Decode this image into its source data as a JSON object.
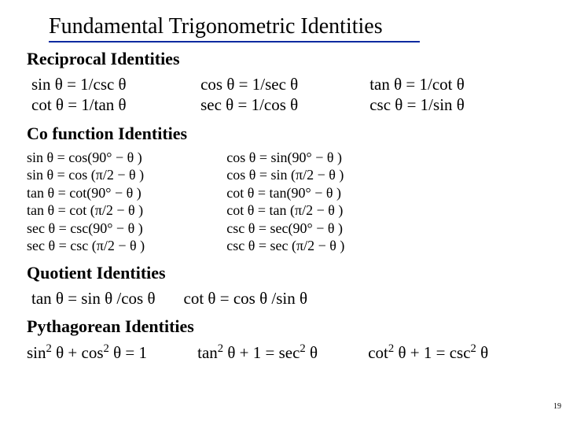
{
  "title": "Fundamental Trigonometric Identities",
  "underline_color": "#0a2aa0",
  "sections": {
    "reciprocal": "Reciprocal Identities",
    "cofunction": "Co function Identities",
    "quotient": "Quotient Identities",
    "pythagorean": "Pythagorean Identities"
  },
  "reciprocal_rows": {
    "c1r1": "sin θ = 1/csc θ",
    "c1r2": "cot θ = 1/tan θ",
    "c2r1": "cos θ = 1/sec θ",
    "c2r2": "sec θ = 1/cos θ",
    "c3r1": "tan θ = 1/cot θ",
    "c3r2": "csc θ = 1/sin θ"
  },
  "cofunction_rows": {
    "cA": [
      "sin θ = cos(90° − θ )",
      "sin θ = cos (π/2 − θ )",
      "tan θ = cot(90° − θ )",
      "tan θ = cot (π/2 − θ )",
      "sec θ = csc(90° − θ )",
      "sec θ = csc (π/2 − θ )"
    ],
    "cB": [
      "cos θ = sin(90° − θ )",
      "cos θ = sin (π/2 − θ )",
      "cot θ = tan(90° − θ )",
      "cot θ = tan (π/2 − θ )",
      "csc θ = sec(90° − θ )",
      "csc θ = sec (π/2 − θ )"
    ]
  },
  "quotient": {
    "q1": "tan θ = sin θ /cos θ",
    "q2": "cot θ  = cos θ /sin θ"
  },
  "pythag": {
    "p1_pre": "sin",
    "p1_mid": " θ + cos",
    "p1_post": " θ = 1",
    "p2_pre": "tan",
    "p2_mid": " θ + 1 = sec",
    "p2_post": " θ",
    "p3_pre": "cot",
    "p3_mid": " θ + 1 = csc",
    "p3_post": " θ",
    "sq": "2"
  },
  "page_number": "19"
}
